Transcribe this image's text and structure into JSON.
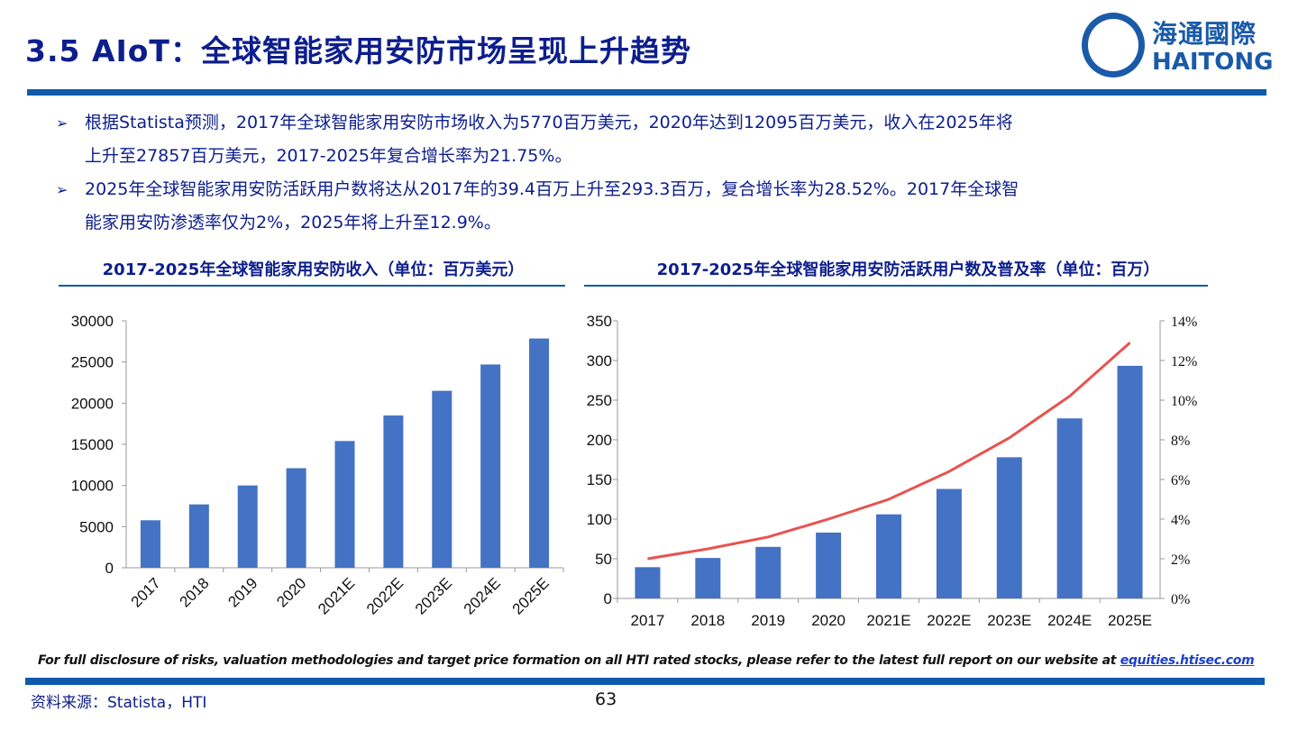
{
  "header": {
    "title": "3.5 AIoT：全球智能家用安防市场呈现上升趋势"
  },
  "logo": {
    "cn": "海通國際",
    "en": "HAITONG"
  },
  "bullets": [
    {
      "line1": "根据Statista预测，2017年全球智能家用安防市场收入为5770百万美元，2020年达到12095百万美元，收入在2025年将",
      "line2": "上升至27857百万美元，2017-2025年复合增长率为21.75%。"
    },
    {
      "line1": "2025年全球智能家用安防活跃用户数将达从2017年的39.4百万上升至293.3百万，复合增长率为28.52%。2017年全球智",
      "line2": "能家用安防渗透率仅为2%，2025年将上升至12.9%。"
    }
  ],
  "bullet_marker": "➢",
  "chart_data": [
    {
      "type": "bar",
      "title": "2017-2025年全球智能家用安防收入（单位：百万美元）",
      "categories": [
        "2017",
        "2018",
        "2019",
        "2020",
        "2021E",
        "2022E",
        "2023E",
        "2024E",
        "2025E"
      ],
      "values": [
        5770,
        7700,
        10000,
        12095,
        15400,
        18500,
        21500,
        24700,
        27857
      ],
      "ylim": [
        0,
        30000
      ],
      "yticks": [
        "0",
        "5000",
        "10000",
        "15000",
        "20000",
        "25000",
        "30000"
      ],
      "color": "#4472c4",
      "xlabel": "",
      "ylabel": ""
    },
    {
      "type": "bar+line",
      "title": "2017-2025年全球智能家用安防活跃用户数及普及率（单位：百万）",
      "categories": [
        "2017",
        "2018",
        "2019",
        "2020",
        "2021E",
        "2022E",
        "2023E",
        "2024E",
        "2025E"
      ],
      "series": [
        {
          "name": "活跃用户数",
          "type": "bar",
          "axis": "left",
          "values": [
            39.4,
            51,
            65,
            83,
            106,
            138,
            178,
            227,
            293.3
          ],
          "color": "#4472c4"
        },
        {
          "name": "普及率",
          "type": "line",
          "axis": "right",
          "values": [
            2.0,
            2.5,
            3.1,
            4.0,
            5.0,
            6.4,
            8.1,
            10.2,
            12.9
          ],
          "color": "#e8534f"
        }
      ],
      "ylim": [
        0,
        350
      ],
      "yticks": [
        "0",
        "50",
        "100",
        "150",
        "200",
        "250",
        "300",
        "350"
      ],
      "y2lim": [
        0,
        14
      ],
      "y2ticks": [
        "0%",
        "2%",
        "4%",
        "6%",
        "8%",
        "10%",
        "12%",
        "14%"
      ]
    }
  ],
  "footer": {
    "disclaimer": "For full disclosure of risks, valuation methodologies and target price formation on all HTI rated stocks, please refer to the latest full report on our website at ",
    "link": "equities.htisec.com",
    "source": "资料来源：Statista，HTI",
    "page": "63"
  }
}
